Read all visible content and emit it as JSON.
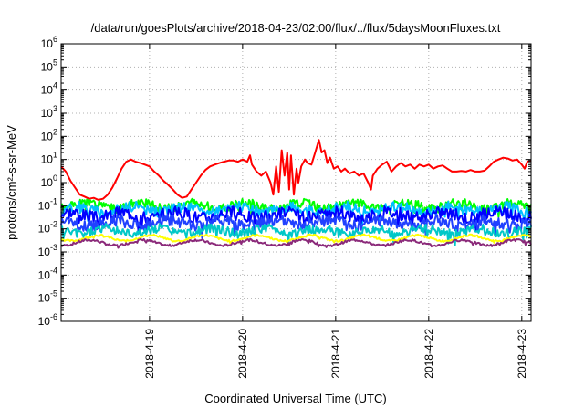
{
  "chart_data": {
    "type": "line",
    "title": "/data/run/goesPlots/archive/2018-04-23/02:00/flux/../flux/5daysMoonFluxes.txt",
    "xlabel": "Coordinated Universal Time (UTC)",
    "ylabel": "protons/cm²-s-sr-MeV",
    "y_scale": "log",
    "ylim": [
      1e-06,
      1000000.0
    ],
    "xlim": [
      18.05,
      23.1
    ],
    "grid": true,
    "x_ticks": [
      {
        "value": 19,
        "label": "2018-4-19"
      },
      {
        "value": 20,
        "label": "2018-4-20"
      },
      {
        "value": 21,
        "label": "2018-4-21"
      },
      {
        "value": 22,
        "label": "2018-4-22"
      },
      {
        "value": 23,
        "label": "2018-4-23"
      }
    ],
    "y_ticks": [
      {
        "value": 1e-06,
        "base": "10",
        "exp": "-6"
      },
      {
        "value": 1e-05,
        "base": "10",
        "exp": "-5"
      },
      {
        "value": 0.0001,
        "base": "10",
        "exp": "-4"
      },
      {
        "value": 0.001,
        "base": "10",
        "exp": "-3"
      },
      {
        "value": 0.01,
        "base": "10",
        "exp": "-2"
      },
      {
        "value": 0.1,
        "base": "10",
        "exp": "-1"
      },
      {
        "value": 1,
        "base": "10",
        "exp": "0"
      },
      {
        "value": 10,
        "base": "10",
        "exp": "1"
      },
      {
        "value": 100,
        "base": "10",
        "exp": "2"
      },
      {
        "value": 1000,
        "base": "10",
        "exp": "3"
      },
      {
        "value": 10000,
        "base": "10",
        "exp": "4"
      },
      {
        "value": 100000,
        "base": "10",
        "exp": "5"
      },
      {
        "value": 1000000,
        "base": "10",
        "exp": "6"
      }
    ],
    "series": [
      {
        "color": "#ff0000",
        "points": [
          [
            18.05,
            5
          ],
          [
            18.1,
            3
          ],
          [
            18.15,
            1.2
          ],
          [
            18.2,
            0.6
          ],
          [
            18.25,
            0.3
          ],
          [
            18.3,
            0.25
          ],
          [
            18.35,
            0.2
          ],
          [
            18.4,
            0.22
          ],
          [
            18.45,
            0.18
          ],
          [
            18.5,
            0.2
          ],
          [
            18.55,
            0.3
          ],
          [
            18.6,
            0.6
          ],
          [
            18.65,
            1.5
          ],
          [
            18.7,
            4
          ],
          [
            18.75,
            8
          ],
          [
            18.8,
            10
          ],
          [
            18.85,
            8
          ],
          [
            18.9,
            7
          ],
          [
            18.95,
            6
          ],
          [
            19.0,
            5
          ],
          [
            19.05,
            3
          ],
          [
            19.1,
            2
          ],
          [
            19.15,
            1.2
          ],
          [
            19.2,
            0.8
          ],
          [
            19.25,
            0.5
          ],
          [
            19.3,
            0.3
          ],
          [
            19.35,
            0.22
          ],
          [
            19.4,
            0.25
          ],
          [
            19.45,
            0.5
          ],
          [
            19.5,
            1
          ],
          [
            19.55,
            2
          ],
          [
            19.6,
            3.5
          ],
          [
            19.65,
            5
          ],
          [
            19.7,
            6
          ],
          [
            19.75,
            7
          ],
          [
            19.8,
            8
          ],
          [
            19.85,
            9
          ],
          [
            19.9,
            9
          ],
          [
            19.95,
            8
          ],
          [
            20.0,
            10
          ],
          [
            20.05,
            8
          ],
          [
            20.08,
            15
          ],
          [
            20.1,
            6
          ],
          [
            20.15,
            3
          ],
          [
            20.2,
            2
          ],
          [
            20.25,
            3
          ],
          [
            20.3,
            1
          ],
          [
            20.33,
            0.3
          ],
          [
            20.36,
            5
          ],
          [
            20.39,
            0.4
          ],
          [
            20.42,
            25
          ],
          [
            20.45,
            2
          ],
          [
            20.48,
            20
          ],
          [
            20.5,
            0.5
          ],
          [
            20.52,
            15
          ],
          [
            20.55,
            0.3
          ],
          [
            20.58,
            4
          ],
          [
            20.6,
            1
          ],
          [
            20.63,
            5
          ],
          [
            20.67,
            10
          ],
          [
            20.7,
            7
          ],
          [
            20.74,
            6
          ],
          [
            20.78,
            20
          ],
          [
            20.82,
            70
          ],
          [
            20.85,
            20
          ],
          [
            20.88,
            25
          ],
          [
            20.91,
            7
          ],
          [
            20.94,
            12
          ],
          [
            20.98,
            4
          ],
          [
            21.02,
            5
          ],
          [
            21.06,
            3
          ],
          [
            21.1,
            4
          ],
          [
            21.15,
            2.5
          ],
          [
            21.2,
            3
          ],
          [
            21.25,
            2
          ],
          [
            21.3,
            2.5
          ],
          [
            21.35,
            1
          ],
          [
            21.38,
            0.5
          ],
          [
            21.4,
            2
          ],
          [
            21.45,
            4
          ],
          [
            21.5,
            6
          ],
          [
            21.55,
            8
          ],
          [
            21.6,
            3
          ],
          [
            21.65,
            5
          ],
          [
            21.7,
            7
          ],
          [
            21.75,
            5
          ],
          [
            21.8,
            6
          ],
          [
            21.85,
            4
          ],
          [
            21.9,
            6
          ],
          [
            21.95,
            5
          ],
          [
            22.0,
            6
          ],
          [
            22.05,
            4
          ],
          [
            22.1,
            5
          ],
          [
            22.15,
            5.5
          ],
          [
            22.2,
            4
          ],
          [
            22.25,
            3
          ],
          [
            22.3,
            3
          ],
          [
            22.35,
            3.2
          ],
          [
            22.4,
            3
          ],
          [
            22.45,
            3.5
          ],
          [
            22.5,
            3
          ],
          [
            22.55,
            3
          ],
          [
            22.6,
            3.3
          ],
          [
            22.65,
            5
          ],
          [
            22.7,
            8
          ],
          [
            22.75,
            10
          ],
          [
            22.8,
            12
          ],
          [
            22.85,
            11
          ],
          [
            22.9,
            9
          ],
          [
            22.95,
            10
          ],
          [
            23.0,
            6
          ],
          [
            23.03,
            4
          ],
          [
            23.06,
            8
          ],
          [
            23.1,
            9
          ]
        ]
      },
      {
        "color": "#00ff00",
        "base": 0.1,
        "amp": 0.4,
        "seed": 1
      },
      {
        "color": "#00c0ff",
        "base": 0.07,
        "amp": 0.45,
        "seed": 2
      },
      {
        "color": "#0000ff",
        "base": 0.04,
        "amp": 0.55,
        "seed": 3
      },
      {
        "color": "#2040ff",
        "base": 0.018,
        "amp": 0.5,
        "seed": 4
      },
      {
        "color": "#00c8c8",
        "base": 0.008,
        "amp": 0.4,
        "seed": 5
      },
      {
        "color": "#ffff00",
        "base": 0.004,
        "amp": 0.08,
        "seed": 6
      },
      {
        "color": "#8b2a7a",
        "base": 0.0025,
        "amp": 0.1,
        "seed": 7
      }
    ]
  }
}
